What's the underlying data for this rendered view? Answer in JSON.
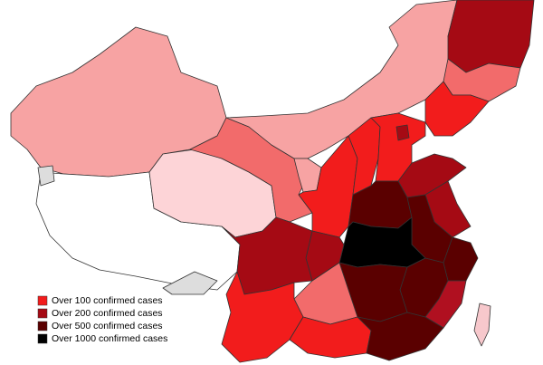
{
  "legend": {
    "items": [
      {
        "label": "Over 100 confirmed cases",
        "color": "#f21c1c"
      },
      {
        "label": "Over 200 confirmed cases",
        "color": "#a50a14"
      },
      {
        "label": "Over 500 confirmed cases",
        "color": "#5a0000"
      },
      {
        "label": "Over 1000 confirmed cases",
        "color": "#000000"
      }
    ]
  }
}
